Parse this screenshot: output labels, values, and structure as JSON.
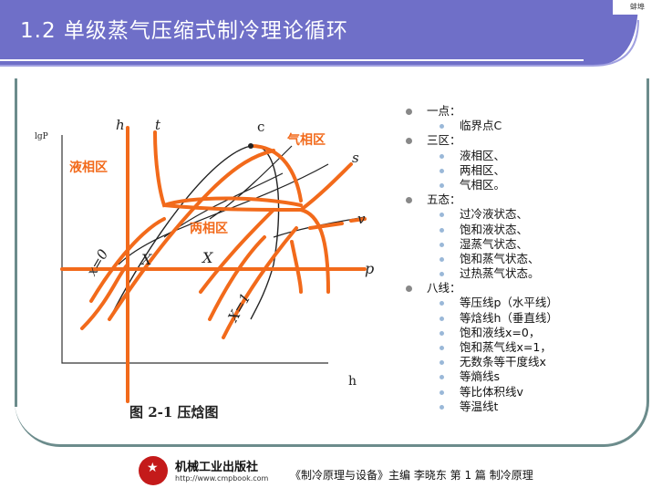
{
  "header": {
    "title": "1.2  单级蒸气压缩式制冷理论循环",
    "logo_text": "蚌埠"
  },
  "figure": {
    "caption": "图 2-1   压焓图",
    "axis_y_label": "lgP",
    "axis_x_label": "h",
    "line_labels": {
      "h": "h",
      "t": "t",
      "c": "c",
      "s": "s",
      "v": "v",
      "p": "p",
      "x0": "x=0",
      "x1": "X=1",
      "X_left": "X",
      "X_right": "X"
    },
    "regions": {
      "liquid": "液相区",
      "two_phase": "两相区",
      "vapor": "气相区"
    },
    "accent_color": "#f26a1b"
  },
  "bullets": [
    {
      "label": "一点：",
      "items": [
        "临界点C"
      ]
    },
    {
      "label": "三区：",
      "items": [
        "液相区、",
        "两相区、",
        "气相区。"
      ]
    },
    {
      "label": "五态：",
      "items": [
        "过冷液状态、",
        "饱和液状态、",
        "湿蒸气状态、",
        "饱和蒸气状态、",
        "过热蒸气状态。"
      ]
    },
    {
      "label": "八线：",
      "items": [
        "等压线p（水平线）",
        "等焓线h（垂直线）",
        "饱和液线x=0，",
        "饱和蒸气线x=1，",
        "无数条等干度线x",
        "等熵线s",
        "等比体积线v",
        "等温线t"
      ]
    }
  ],
  "footer": {
    "publisher": "机械工业出版社",
    "url": "http://www.cmpbook.com",
    "text": "《制冷原理与设备》主编  李晓东    第 1 篇    制冷原理"
  }
}
